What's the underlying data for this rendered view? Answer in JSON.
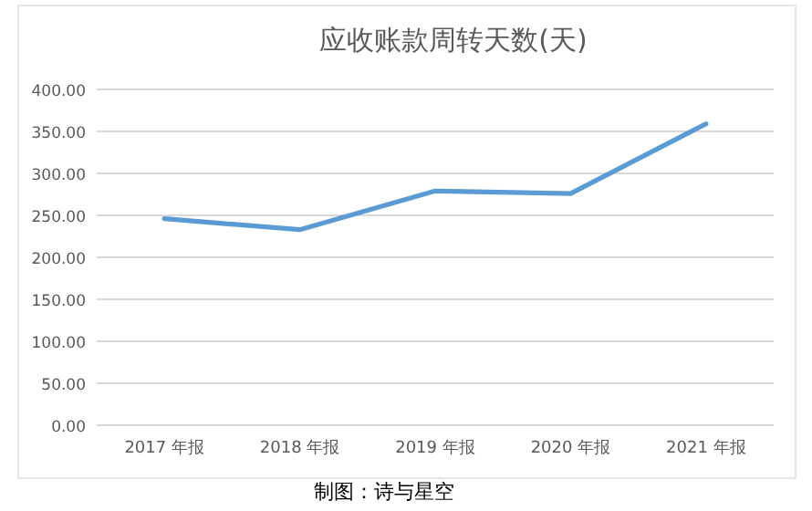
{
  "chart_data": {
    "type": "line",
    "title": "应收账款周转天数(天)",
    "categories": [
      "2017 年报",
      "2018 年报",
      "2019 年报",
      "2020 年报",
      "2021 年报"
    ],
    "series": [
      {
        "color": "#5b9bd5",
        "values": [
          246,
          233,
          279,
          276,
          359
        ]
      }
    ],
    "ylim": [
      0,
      400
    ],
    "yticks": [
      {
        "value": 0,
        "label": "0.00"
      },
      {
        "value": 50,
        "label": "50.00"
      },
      {
        "value": 100,
        "label": "100.00"
      },
      {
        "value": 150,
        "label": "150.00"
      },
      {
        "value": 200,
        "label": "200.00"
      },
      {
        "value": 250,
        "label": "250.00"
      },
      {
        "value": 300,
        "label": "300.00"
      },
      {
        "value": 350,
        "label": "350.00"
      },
      {
        "value": 400,
        "label": "400.00"
      }
    ],
    "grid": "y",
    "marker": "none",
    "line_style": "solid",
    "annotations": [
      "制图：诗与星空"
    ]
  }
}
